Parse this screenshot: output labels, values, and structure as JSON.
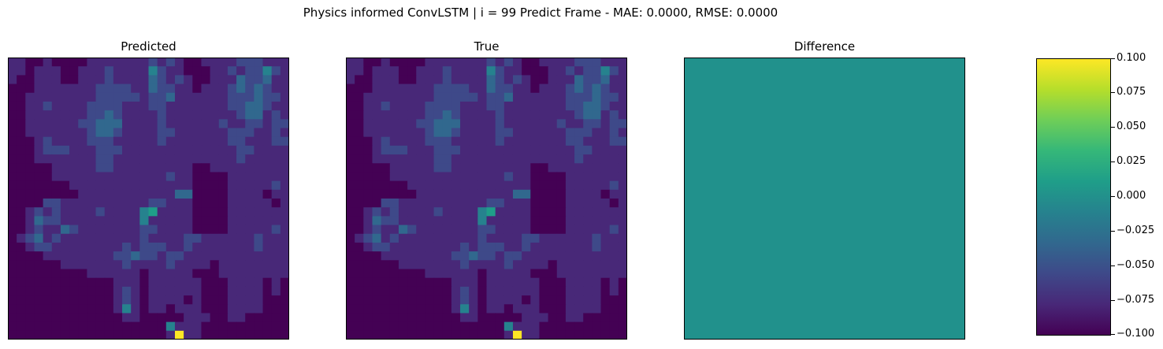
{
  "figure": {
    "suptitle": "Physics informed ConvLSTM | i = 99 Predict Frame - MAE: 0.0000, RMSE: 0.0000"
  },
  "panels": [
    {
      "title": "Predicted"
    },
    {
      "title": "True"
    },
    {
      "title": "Difference"
    }
  ],
  "colorbar": {
    "colormap": "viridis",
    "colors": [
      "#440154",
      "#482878",
      "#3e4989",
      "#31688e",
      "#26828e",
      "#1f9e89",
      "#35b779",
      "#6ece58",
      "#b5de2b",
      "#fde725"
    ],
    "ticks": [
      "0.100",
      "0.075",
      "0.050",
      "0.025",
      "0.000",
      "−0.025",
      "−0.050",
      "−0.075",
      "−0.100"
    ]
  },
  "chart_data": [
    {
      "type": "heatmap",
      "title": "Predicted",
      "grid": [
        32,
        32
      ],
      "colormap": "viridis",
      "note_values": "0=low (dark purple) .. 9=high (yellow), estimated",
      "rows": [
        "11001000011111112121001111222111",
        "11011100111211114211000112122421",
        "10011100111211113212100111322311",
        "00011111112222113221101112323211",
        "00111111112222212231111112223221",
        "00112111122221112211111112233211",
        "00111111122321111211111111233121",
        "00111111223331111211111121122122",
        "00111111123321111221111112221121",
        "00012111122211111211111112211122",
        "00012221112221111111111111221111",
        "00011111112211111111111111211111",
        "00000111112211111111100111111111",
        "00000111111111111121100001111111",
        "00000001111111111111100001111121",
        "00000000111111111113300001111011",
        "00002211111111112211100001111101",
        "00121211112111145111100001111111",
        "00132211111111141111100001111111",
        "00121132111111122111100001111121",
        "01231211111111121111221111112111",
        "00122111111112122211211111112111",
        "00001111111122322122111111111111",
        "00000011111112111121111011111111",
        "00000000011111101111100011111111",
        "00000000000011101111110001111010",
        "00000000000012101111110001111010",
        "00000000000012101111010001111000",
        "00000000000014101101110001111000",
        "00000000000001100000111001100000",
        "00000000000000000041110000000000",
        "00000000000000000019110000000000"
      ]
    },
    {
      "type": "heatmap",
      "title": "True",
      "grid": [
        32,
        32
      ],
      "colormap": "viridis",
      "rows": "same as Predicted"
    },
    {
      "type": "heatmap",
      "title": "Difference",
      "grid": [
        32,
        32
      ],
      "colormap": "viridis",
      "value": 0.0,
      "vmin": -0.1,
      "vmax": 0.1
    }
  ]
}
